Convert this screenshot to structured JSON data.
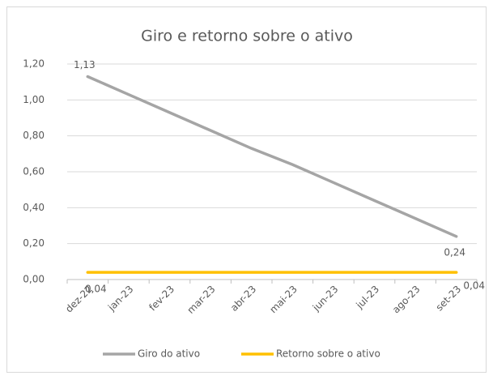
{
  "chart_data": {
    "type": "line",
    "title": "Giro e retorno sobre o ativo",
    "categories": [
      "dez-22",
      "jan-23",
      "fev-23",
      "mar-23",
      "abr-23",
      "mai-23",
      "jun-23",
      "jul-23",
      "ago-23",
      "set-23"
    ],
    "series": [
      {
        "name": "Giro do ativo",
        "color": "#a5a5a5",
        "values": [
          1.13,
          1.03,
          0.93,
          0.83,
          0.73,
          0.64,
          0.54,
          0.44,
          0.34,
          0.24
        ],
        "value_labels": [
          "1,13",
          null,
          null,
          null,
          null,
          null,
          null,
          null,
          null,
          "0,24"
        ]
      },
      {
        "name": "Retorno sobre o ativo",
        "color": "#ffc000",
        "values": [
          0.04,
          0.04,
          0.04,
          0.04,
          0.04,
          0.04,
          0.04,
          0.04,
          0.04,
          0.04
        ],
        "value_labels": [
          "0,04",
          null,
          null,
          null,
          null,
          null,
          null,
          null,
          null,
          "0,04"
        ]
      }
    ],
    "ylim": [
      0,
      1.2
    ],
    "yticks": [
      {
        "value": 0,
        "label": "0,00"
      },
      {
        "value": 0.2,
        "label": "0,20"
      },
      {
        "value": 0.4,
        "label": "0,40"
      },
      {
        "value": 0.6,
        "label": "0,60"
      },
      {
        "value": 0.8,
        "label": "0,80"
      },
      {
        "value": 1.0,
        "label": "1,00"
      },
      {
        "value": 1.2,
        "label": "1,20"
      }
    ],
    "grid": true,
    "legend": "bottom"
  }
}
